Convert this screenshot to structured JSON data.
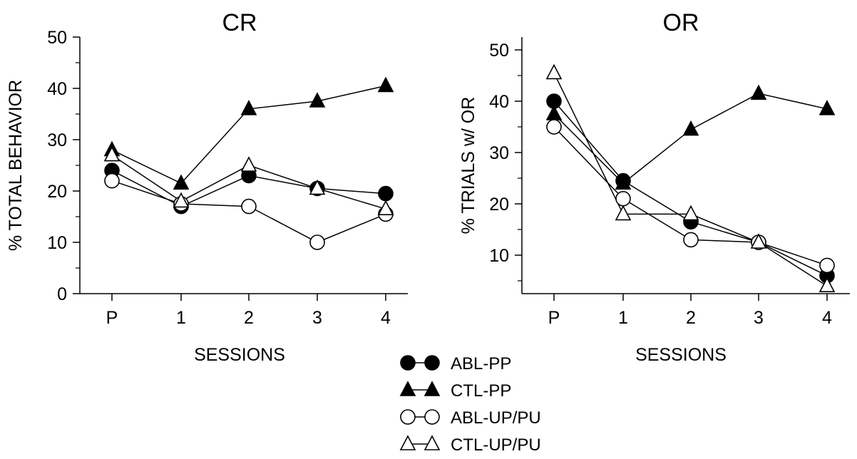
{
  "chart_data": [
    {
      "type": "line",
      "title": "CR",
      "xlabel": "SESSIONS",
      "ylabel": "% TOTAL BEHAVIOR",
      "categories": [
        "P",
        "1",
        "2",
        "3",
        "4"
      ],
      "ylim": [
        0,
        50
      ],
      "yticks": [
        0,
        10,
        20,
        30,
        40,
        50
      ],
      "grid": false,
      "series": [
        {
          "name": "ABL-PP",
          "marker": "circle",
          "filled": true,
          "values": [
            24,
            17,
            23,
            20.5,
            19.5
          ]
        },
        {
          "name": "CTL-PP",
          "marker": "triangle",
          "filled": true,
          "values": [
            28,
            21.5,
            36,
            37.5,
            40.5
          ]
        },
        {
          "name": "ABL-UP/PU",
          "marker": "circle",
          "filled": false,
          "values": [
            22,
            17.5,
            17,
            10,
            15.5
          ]
        },
        {
          "name": "CTL-UP/PU",
          "marker": "triangle",
          "filled": false,
          "values": [
            27,
            18,
            25,
            20.5,
            16.5
          ]
        }
      ]
    },
    {
      "type": "line",
      "title": "OR",
      "xlabel": "SESSIONS",
      "ylabel": "% TRIALS w/ OR",
      "categories": [
        "P",
        "1",
        "2",
        "3",
        "4"
      ],
      "ylim": [
        2.5,
        52.5
      ],
      "yticks": [
        10,
        20,
        30,
        40,
        50
      ],
      "grid": false,
      "series": [
        {
          "name": "ABL-PP",
          "marker": "circle",
          "filled": true,
          "values": [
            40,
            24.5,
            16.5,
            12.5,
            6
          ]
        },
        {
          "name": "CTL-PP",
          "marker": "triangle",
          "filled": true,
          "values": [
            37.5,
            24,
            34.5,
            41.5,
            38.5
          ]
        },
        {
          "name": "ABL-UP/PU",
          "marker": "circle",
          "filled": false,
          "values": [
            35,
            21,
            13,
            12.5,
            8
          ]
        },
        {
          "name": "CTL-UP/PU",
          "marker": "triangle",
          "filled": false,
          "values": [
            45.5,
            18,
            18,
            12.5,
            4
          ]
        }
      ]
    }
  ],
  "legend": {
    "placement": "bottom-center",
    "items": [
      {
        "label": "ABL-PP",
        "marker": "circle",
        "filled": true
      },
      {
        "label": "CTL-PP",
        "marker": "triangle",
        "filled": true
      },
      {
        "label": "ABL-UP/PU",
        "marker": "circle",
        "filled": false
      },
      {
        "label": "CTL-UP/PU",
        "marker": "triangle",
        "filled": false
      }
    ]
  }
}
